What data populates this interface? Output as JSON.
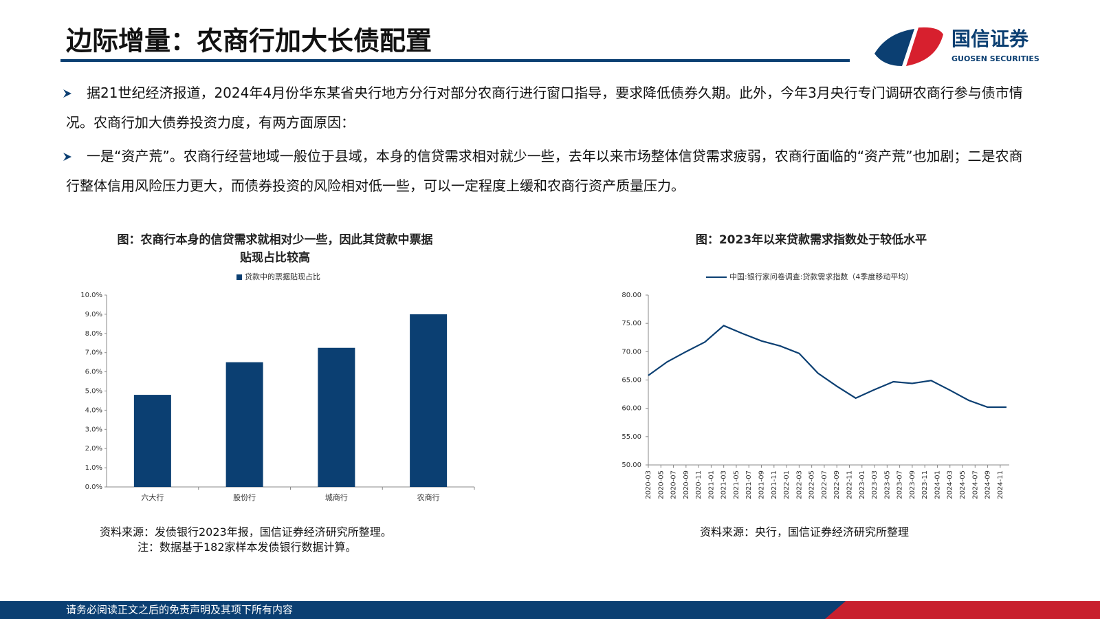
{
  "header": {
    "title": "边际增量：农商行加大长债配置",
    "logo_name": "国信证券",
    "logo_sub": "GUOSEN SECURITIES"
  },
  "bullets": [
    "据21世纪经济报道，2024年4月份华东某省央行地方分行对部分农商行进行窗口指导，要求降低债券久期。此外，今年3月央行专门调研农商行参与债市情况。农商行加大债券投资力度，有两方面原因：",
    "一是“资产荒”。农商行经营地域一般位于县域，本身的信贷需求相对就少一些，去年以来市场整体信贷需求疲弱，农商行面临的“资产荒”也加剧；二是农商行整体信用风险压力更大，而债券投资的风险相对低一些，可以一定程度上缓和农商行资产质量压力。"
  ],
  "chart_data": [
    {
      "type": "bar",
      "title": "图：农商行本身的信贷需求就相对少一些，因此其贷款中票据贴现占比较高",
      "categories": [
        "六大行",
        "股份行",
        "城商行",
        "农商行"
      ],
      "series": [
        {
          "name": "贷款中的票据贴现占比",
          "color": "#0b3f72",
          "values": [
            4.8,
            6.5,
            7.25,
            9.0
          ]
        }
      ],
      "ylim": [
        0,
        10
      ],
      "yticks": [
        {
          "value": 0,
          "label": "0.0%"
        },
        {
          "value": 1,
          "label": "1.0%"
        },
        {
          "value": 2,
          "label": "2.0%"
        },
        {
          "value": 3,
          "label": "3.0%"
        },
        {
          "value": 4,
          "label": "4.0%"
        },
        {
          "value": 5,
          "label": "5.0%"
        },
        {
          "value": 6,
          "label": "6.0%"
        },
        {
          "value": 7,
          "label": "7.0%"
        },
        {
          "value": 8,
          "label": "8.0%"
        },
        {
          "value": 9,
          "label": "9.0%"
        },
        {
          "value": 10,
          "label": "10.0%"
        }
      ],
      "source": "资料来源：发债银行2023年报，国信证券经济研究所整理。",
      "note": "注：数据基于182家样本发债银行数据计算。"
    },
    {
      "type": "line",
      "title": "图：2023年以来贷款需求指数处于较低水平",
      "x": [
        "2020-03",
        "2020-06",
        "2020-09",
        "2020-12",
        "2021-03",
        "2021-06",
        "2021-09",
        "2021-12",
        "2022-03",
        "2022-06",
        "2022-09",
        "2022-12",
        "2023-03",
        "2023-06",
        "2023-09",
        "2023-12",
        "2024-03",
        "2024-06",
        "2024-09",
        "2024-12"
      ],
      "series": [
        {
          "name": "中国:银行家问卷调查:贷款需求指数（4季度移动平均）",
          "color": "#0b3f72",
          "values": [
            65.8,
            68.2,
            70.0,
            71.7,
            74.6,
            73.2,
            71.9,
            71.0,
            69.7,
            66.2,
            63.9,
            61.8,
            63.3,
            64.7,
            64.4,
            64.9,
            63.2,
            61.4,
            60.2,
            60.2
          ]
        }
      ],
      "xlim": [
        "2020-03",
        "2024-12"
      ],
      "xticks": [
        "2020-03",
        "2020-05",
        "2020-07",
        "2020-09",
        "2020-11",
        "2021-01",
        "2021-03",
        "2021-05",
        "2021-07",
        "2021-09",
        "2021-11",
        "2022-01",
        "2022-03",
        "2022-05",
        "2022-07",
        "2022-09",
        "2022-11",
        "2023-01",
        "2023-03",
        "2023-05",
        "2023-07",
        "2023-09",
        "2023-11",
        "2024-01",
        "2024-03",
        "2024-05",
        "2024-07",
        "2024-09",
        "2024-11"
      ],
      "ylim": [
        50,
        80
      ],
      "yticks": [
        {
          "value": 50,
          "label": "50.00"
        },
        {
          "value": 55,
          "label": "55.00"
        },
        {
          "value": 60,
          "label": "60.00"
        },
        {
          "value": 65,
          "label": "65.00"
        },
        {
          "value": 70,
          "label": "70.00"
        },
        {
          "value": 75,
          "label": "75.00"
        },
        {
          "value": 80,
          "label": "80.00"
        }
      ],
      "source": "资料来源：央行，国信证券经济研究所整理"
    }
  ],
  "footer": "请务必阅读正文之后的免责声明及其项下所有内容"
}
